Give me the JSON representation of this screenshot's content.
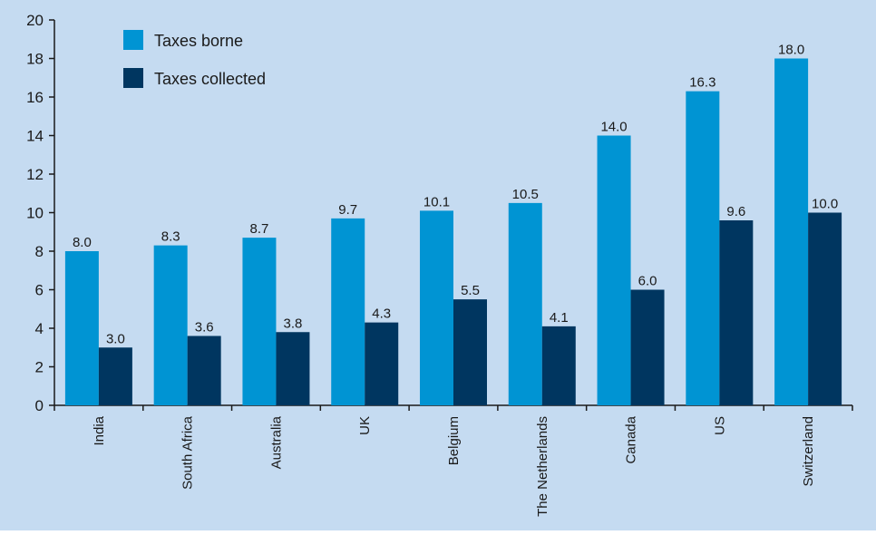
{
  "colors": {
    "background": "#c5dbf1",
    "taxes_borne": "#0094d3",
    "taxes_collected": "#003660",
    "axis": "#1a1a1a",
    "text": "#1a1a1a"
  },
  "chart_data": {
    "type": "bar",
    "title": "",
    "xlabel": "",
    "ylabel": "",
    "ylim": [
      0,
      20
    ],
    "yticks": [
      0,
      2,
      4,
      6,
      8,
      10,
      12,
      14,
      16,
      18,
      20
    ],
    "grid": false,
    "legend_position": "top-left",
    "categories": [
      "India",
      "South Africa",
      "Australia",
      "UK",
      "Belgium",
      "The Netherlands",
      "Canada",
      "US",
      "Switzerland"
    ],
    "series": [
      {
        "name": "Taxes borne",
        "color": "#0094d3",
        "values": [
          8.0,
          8.3,
          8.7,
          9.7,
          10.1,
          10.5,
          14.0,
          16.3,
          18.0
        ],
        "labels": [
          "8.0",
          "8.3",
          "8.7",
          "9.7",
          "10.1",
          "10.5",
          "14.0",
          "16.3",
          "18.0"
        ]
      },
      {
        "name": "Taxes collected",
        "color": "#003660",
        "values": [
          3.0,
          3.6,
          3.8,
          4.3,
          5.5,
          4.1,
          6.0,
          9.6,
          10.0
        ],
        "labels": [
          "3.0",
          "3.6",
          "3.8",
          "4.3",
          "5.5",
          "4.1",
          "6.0",
          "9.6",
          "10.0"
        ]
      }
    ]
  }
}
